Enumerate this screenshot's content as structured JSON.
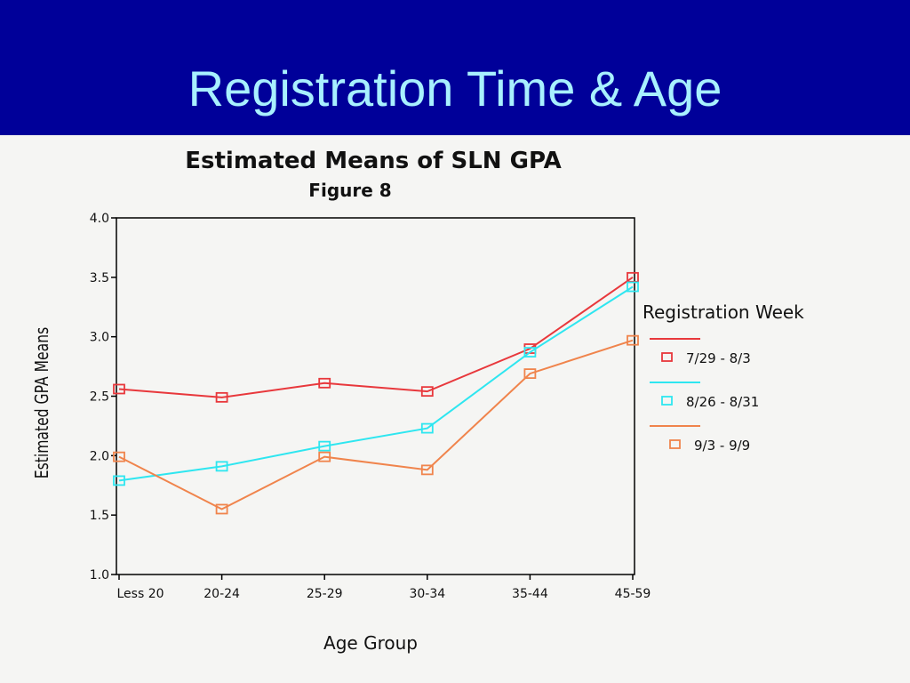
{
  "slide": {
    "title": "Registration Time & Age",
    "header_color": "#000099",
    "title_color": "#a8f0ff"
  },
  "chart_data": {
    "type": "line",
    "title": "Estimated Means of SLN GPA",
    "subtitle": "Figure 8",
    "xlabel": "Age Group",
    "ylabel": "Estimated GPA Means",
    "categories": [
      "Less 20",
      "20-24",
      "25-29",
      "30-34",
      "35-44",
      "45-59"
    ],
    "ylim": [
      1.0,
      4.0
    ],
    "yticks": [
      "1.0",
      "1.5",
      "2.0",
      "2.5",
      "3.0",
      "3.5",
      "4.0"
    ],
    "grid": false,
    "legend_position": "right",
    "legend_title": "Registration Week",
    "series": [
      {
        "name": "7/29 - 8/3",
        "color": "#e8383c",
        "values": [
          2.56,
          2.49,
          2.61,
          2.54,
          2.9,
          3.5
        ]
      },
      {
        "name": "8/26 - 8/31",
        "color": "#2ee6f0",
        "values": [
          1.79,
          1.91,
          2.08,
          2.23,
          2.87,
          3.42
        ]
      },
      {
        "name": "9/3 - 9/9",
        "color": "#f0844c",
        "values": [
          1.99,
          1.55,
          1.99,
          1.88,
          2.69,
          2.97
        ]
      }
    ]
  }
}
